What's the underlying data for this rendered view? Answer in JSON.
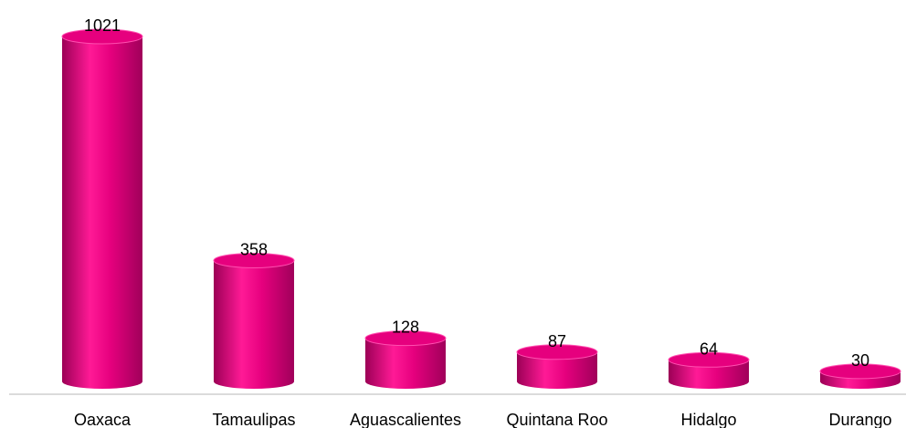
{
  "chart_data": {
    "type": "bar",
    "style": "cylinder",
    "categories": [
      "Oaxaca",
      "Tamaulipas",
      "Aguascalientes",
      "Quintana Roo",
      "Hidalgo",
      "Durango"
    ],
    "values": [
      1021,
      358,
      128,
      87,
      64,
      30
    ],
    "color": "#e6007e"
  }
}
